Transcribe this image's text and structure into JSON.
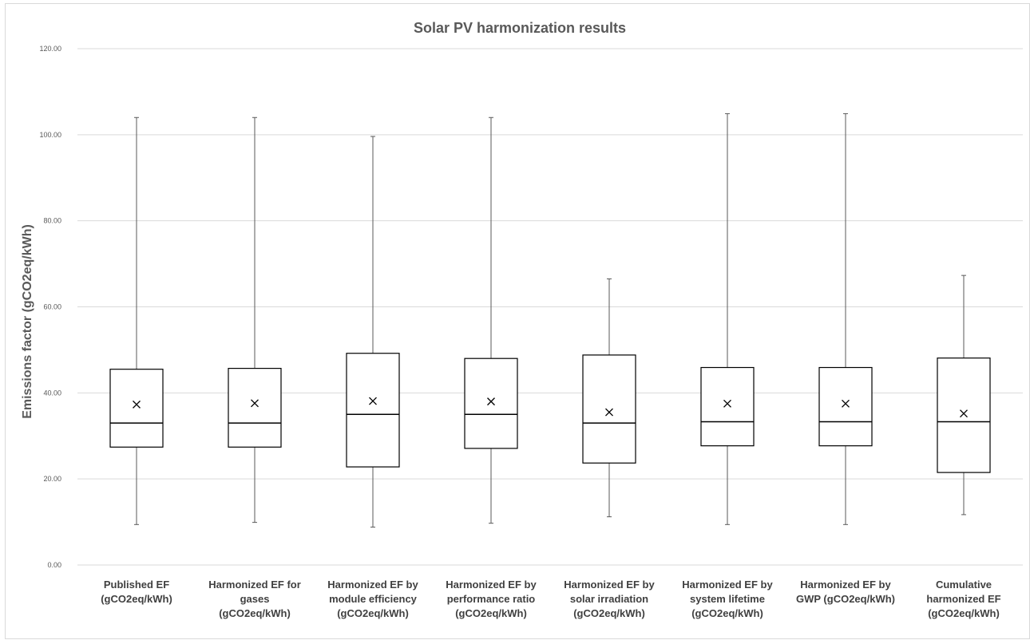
{
  "chart_data": {
    "type": "box",
    "title": "Solar PV harmonization results",
    "ylabel": "Emissions factor (gCO2eq/kWh)",
    "xlabel": "",
    "ylim": [
      0,
      120
    ],
    "y_ticks": [
      "0.00",
      "20.00",
      "40.00",
      "60.00",
      "80.00",
      "100.00",
      "120.00"
    ],
    "grid": true,
    "legend": "none",
    "categories": [
      [
        "Published EF",
        "(gCO2eq/kWh)"
      ],
      [
        "Harmonized EF for",
        "gases",
        "(gCO2eq/kWh)"
      ],
      [
        "Harmonized EF by",
        "module efficiency",
        "(gCO2eq/kWh)"
      ],
      [
        "Harmonized EF by",
        "performance ratio",
        "(gCO2eq/kWh)"
      ],
      [
        "Harmonized EF by",
        "solar irradiation",
        "(gCO2eq/kWh)"
      ],
      [
        "Harmonized EF by",
        "system lifetime",
        "(gCO2eq/kWh)"
      ],
      [
        "Harmonized  EF by",
        "GWP  (gCO2eq/kWh)"
      ],
      [
        "Cumulative",
        "harmonized EF",
        "(gCO2eq/kWh)"
      ]
    ],
    "boxes": [
      {
        "min": 9.4,
        "q1": 27.4,
        "median": 33.0,
        "q3": 45.5,
        "max": 104.0,
        "mean": 37.3
      },
      {
        "min": 9.9,
        "q1": 27.4,
        "median": 33.0,
        "q3": 45.7,
        "max": 104.0,
        "mean": 37.6
      },
      {
        "min": 8.8,
        "q1": 22.8,
        "median": 35.0,
        "q3": 49.2,
        "max": 99.6,
        "mean": 38.1
      },
      {
        "min": 9.7,
        "q1": 27.1,
        "median": 35.0,
        "q3": 48.0,
        "max": 104.0,
        "mean": 38.0
      },
      {
        "min": 11.2,
        "q1": 23.7,
        "median": 33.0,
        "q3": 48.8,
        "max": 66.5,
        "mean": 35.5
      },
      {
        "min": 9.4,
        "q1": 27.7,
        "median": 33.3,
        "q3": 45.9,
        "max": 104.9,
        "mean": 37.5
      },
      {
        "min": 9.4,
        "q1": 27.7,
        "median": 33.3,
        "q3": 45.9,
        "max": 104.9,
        "mean": 37.5
      },
      {
        "min": 11.7,
        "q1": 21.5,
        "median": 33.3,
        "q3": 48.1,
        "max": 67.3,
        "mean": 35.2
      }
    ],
    "colors": {
      "box_stroke": "#000000",
      "whisker": "#595959",
      "grid": "#d9d9d9",
      "text": "#595959"
    }
  }
}
